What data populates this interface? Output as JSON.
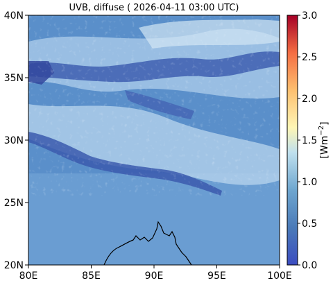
{
  "title": "UVB, diffuse ( 2026-04-11 03:00 UTC)",
  "map": {
    "x_ticks": [
      "80E",
      "85E",
      "90E",
      "95E",
      "100E"
    ],
    "y_ticks": [
      "40N",
      "35N",
      "30N",
      "25N",
      "20N"
    ],
    "lon_range": [
      80,
      100
    ],
    "lat_range": [
      20,
      40
    ]
  },
  "colorbar": {
    "label_base": "[Wm",
    "label_exp": "−2",
    "label_close": "]",
    "ticks": [
      "3.0",
      "2.5",
      "2.0",
      "1.5",
      "1.0",
      "0.5",
      "0.0"
    ],
    "range": [
      0,
      3
    ],
    "colors": [
      "#3b4cc0",
      "#4a7ab8",
      "#6ea6cf",
      "#bfe0ee",
      "#fef6b5",
      "#fdbf6f",
      "#f46d43",
      "#a50026"
    ]
  },
  "colors": {
    "base": "#5a8fca",
    "band_dark": "#3e5fb0",
    "band_light": "#c5dcef",
    "coast": "#000000"
  }
}
